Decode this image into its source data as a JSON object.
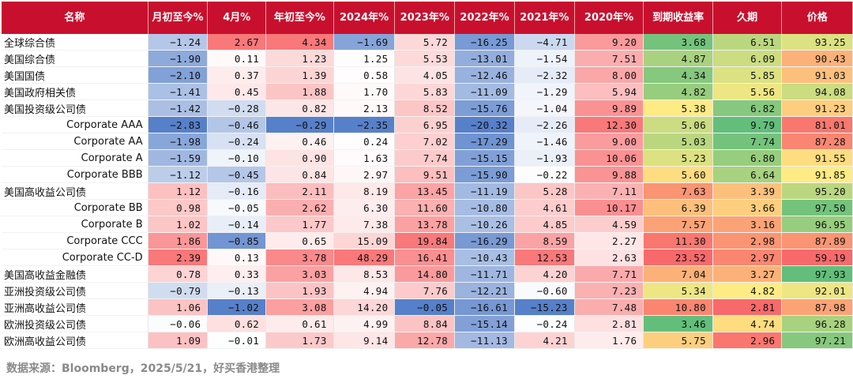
{
  "chart_data": {
    "type": "table",
    "columns": [
      "名称",
      "月初至今%",
      "4月%",
      "年初至今%",
      "2024年%",
      "2023年%",
      "2022年%",
      "2021年%",
      "2020年%",
      "到期收益率",
      "久期",
      "价格"
    ],
    "rows": [
      {
        "name": "全球综合债",
        "sub": false,
        "values": [
          -1.24,
          2.67,
          4.34,
          -1.69,
          5.72,
          -16.25,
          -4.71,
          9.2,
          3.68,
          6.51,
          93.25
        ]
      },
      {
        "name": "美国综合债",
        "sub": false,
        "values": [
          -1.9,
          0.11,
          1.23,
          1.25,
          5.53,
          -13.01,
          -1.54,
          7.51,
          4.87,
          6.09,
          90.43
        ]
      },
      {
        "name": "美国国债",
        "sub": false,
        "values": [
          -2.1,
          0.37,
          1.39,
          0.58,
          4.05,
          -12.46,
          -2.32,
          8.0,
          4.34,
          5.85,
          91.03
        ]
      },
      {
        "name": "美国政府相关债",
        "sub": false,
        "values": [
          -1.41,
          0.45,
          1.88,
          1.7,
          5.83,
          -11.09,
          -1.29,
          5.94,
          4.82,
          5.56,
          94.08
        ]
      },
      {
        "name": "美国投资级公司债",
        "sub": false,
        "values": [
          -1.42,
          -0.28,
          0.82,
          2.13,
          8.52,
          -15.76,
          -1.04,
          9.89,
          5.38,
          6.82,
          91.23
        ]
      },
      {
        "name": "Corporate AAA",
        "sub": true,
        "values": [
          -2.83,
          -0.46,
          -0.29,
          -2.35,
          6.95,
          -20.32,
          -2.26,
          12.3,
          5.06,
          9.79,
          81.01
        ]
      },
      {
        "name": "Corporate AA",
        "sub": true,
        "values": [
          -1.98,
          -0.24,
          0.46,
          0.24,
          7.02,
          -17.29,
          -1.46,
          9.0,
          5.03,
          7.74,
          87.28
        ]
      },
      {
        "name": "Corporate A",
        "sub": true,
        "values": [
          -1.59,
          -0.1,
          0.9,
          1.63,
          7.74,
          -15.15,
          -1.93,
          10.06,
          5.23,
          6.8,
          91.55
        ]
      },
      {
        "name": "Corporate BBB",
        "sub": true,
        "values": [
          -1.12,
          -0.45,
          0.84,
          2.97,
          9.51,
          -15.9,
          -0.22,
          9.88,
          5.6,
          6.64,
          91.85
        ]
      },
      {
        "name": "美国高收益公司债",
        "sub": false,
        "values": [
          1.12,
          -0.16,
          2.11,
          8.19,
          13.45,
          -11.19,
          5.28,
          7.11,
          7.63,
          3.39,
          95.2
        ]
      },
      {
        "name": "Corporate BB",
        "sub": true,
        "values": [
          0.98,
          -0.05,
          2.62,
          6.3,
          11.6,
          -10.8,
          4.61,
          10.17,
          6.39,
          3.66,
          97.5
        ]
      },
      {
        "name": "Corporate B",
        "sub": true,
        "values": [
          1.02,
          -0.14,
          1.77,
          7.38,
          13.78,
          -10.26,
          4.85,
          4.59,
          7.57,
          3.16,
          96.95
        ]
      },
      {
        "name": "Corporate CCC",
        "sub": true,
        "values": [
          1.86,
          -0.85,
          0.65,
          15.09,
          19.84,
          -16.29,
          8.59,
          2.27,
          11.3,
          2.98,
          87.89
        ]
      },
      {
        "name": "Corporate CC-D",
        "sub": true,
        "values": [
          2.39,
          0.13,
          3.78,
          48.29,
          16.41,
          -10.43,
          12.53,
          2.63,
          23.52,
          2.97,
          59.19
        ]
      },
      {
        "name": "美国高收益金融债",
        "sub": false,
        "values": [
          0.78,
          0.33,
          3.03,
          8.53,
          14.8,
          -11.71,
          4.2,
          7.71,
          7.04,
          3.27,
          97.93
        ]
      },
      {
        "name": "亚洲投资级公司债",
        "sub": false,
        "values": [
          -0.79,
          -0.13,
          1.93,
          4.94,
          7.76,
          -12.21,
          -0.6,
          7.23,
          5.34,
          4.82,
          92.01
        ]
      },
      {
        "name": "亚洲高收益公司债",
        "sub": false,
        "values": [
          1.06,
          -1.02,
          3.08,
          14.2,
          -0.05,
          -16.61,
          -15.23,
          7.48,
          10.8,
          2.81,
          87.98
        ]
      },
      {
        "name": "欧洲投资级公司债",
        "sub": false,
        "values": [
          -0.06,
          0.62,
          0.61,
          4.99,
          8.84,
          -15.14,
          -0.24,
          2.81,
          3.46,
          4.74,
          96.28
        ]
      },
      {
        "name": "欧洲高收益公司债",
        "sub": false,
        "values": [
          1.09,
          -0.01,
          1.73,
          9.14,
          12.78,
          -11.13,
          4.21,
          1.76,
          5.75,
          2.96,
          97.21
        ]
      }
    ],
    "source": "数据来源：Bloomberg，2025/5/21，好买香港整理"
  },
  "colors": {
    "header_bg": "#c8102e",
    "header_text": "#ffffff",
    "negative": "#4472c4",
    "positive": "#f8696b",
    "scale_low": "#f8696b",
    "scale_mid": "#ffeb84",
    "scale_high": "#63be7b",
    "source_text": "#8a8a8a"
  }
}
